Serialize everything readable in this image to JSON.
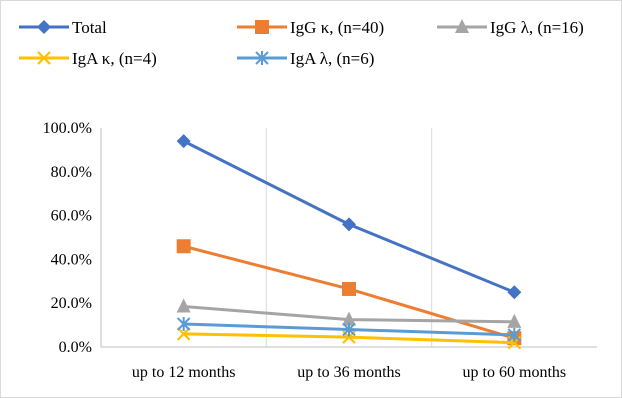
{
  "chart_data": {
    "type": "line",
    "categories": [
      "up to 12 months",
      "up to 36 months",
      "up to 60 months"
    ],
    "ylim": [
      0,
      100
    ],
    "yticks": [
      0,
      20,
      40,
      60,
      80,
      100
    ],
    "ytick_labels": [
      "0.0%",
      "20.0%",
      "40.0%",
      "60.0%",
      "80.0%",
      "100.0%"
    ],
    "grid": "vertical",
    "legend_position": "top",
    "series": [
      {
        "name": "Total",
        "values": [
          94,
          56,
          25
        ],
        "color": "#4472c4",
        "marker": "diamond"
      },
      {
        "name": "IgG κ, (n=40)",
        "values": [
          46,
          26.5,
          4
        ],
        "color": "#ed7d31",
        "marker": "square"
      },
      {
        "name": "IgG λ, (n=16)",
        "values": [
          18.5,
          12.5,
          11.5
        ],
        "color": "#a5a5a5",
        "marker": "triangle"
      },
      {
        "name": "IgA κ, (n=4)",
        "values": [
          6,
          4.5,
          2
        ],
        "color": "#ffc000",
        "marker": "x"
      },
      {
        "name": "IgA λ, (n=6)",
        "values": [
          10.5,
          8,
          5.5
        ],
        "color": "#5b9bd5",
        "marker": "star"
      }
    ]
  }
}
